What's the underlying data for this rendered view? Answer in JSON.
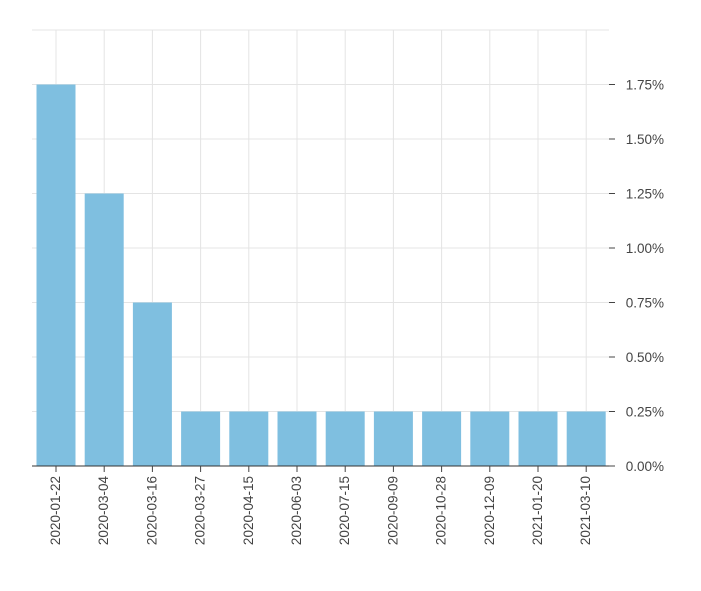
{
  "chart_data": {
    "type": "bar",
    "title": "",
    "xlabel": "",
    "ylabel": "",
    "categories": [
      "2020-01-22",
      "2020-03-04",
      "2020-03-16",
      "2020-03-27",
      "2020-04-15",
      "2020-06-03",
      "2020-07-15",
      "2020-09-09",
      "2020-10-28",
      "2020-12-09",
      "2021-01-20",
      "2021-03-10"
    ],
    "values": [
      1.75,
      1.25,
      0.75,
      0.25,
      0.25,
      0.25,
      0.25,
      0.25,
      0.25,
      0.25,
      0.25,
      0.25
    ],
    "y_unit": "%",
    "ylim": [
      0,
      2.0
    ],
    "y_ticks": [
      0,
      0.25,
      0.5,
      0.75,
      1.0,
      1.25,
      1.5,
      1.75
    ],
    "y_tick_labels": [
      "0.00%",
      "0.25%",
      "0.50%",
      "0.75%",
      "1.00%",
      "1.25%",
      "1.50%",
      "1.75%"
    ],
    "y_axis_side": "right",
    "grid": true,
    "legend": "none",
    "bar_color": "#7fbfe0"
  }
}
